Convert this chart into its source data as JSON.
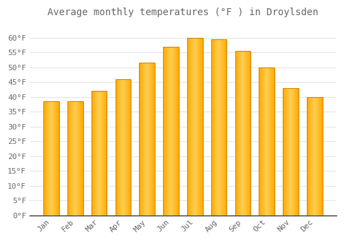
{
  "title": "Average monthly temperatures (°F ) in Droylsden",
  "months": [
    "Jan",
    "Feb",
    "Mar",
    "Apr",
    "May",
    "Jun",
    "Jul",
    "Aug",
    "Sep",
    "Oct",
    "Nov",
    "Dec"
  ],
  "values": [
    38.5,
    38.5,
    42.0,
    46.0,
    51.5,
    57.0,
    60.0,
    59.5,
    55.5,
    50.0,
    43.0,
    40.0
  ],
  "bar_color": "#FFAA00",
  "bar_color_light": "#FFD966",
  "bar_edge_color": "#CC8800",
  "background_color": "#FFFFFF",
  "plot_bg_color": "#FFFFFF",
  "grid_color": "#DDDDDD",
  "text_color": "#666666",
  "spine_color": "#333333",
  "ylim": [
    0,
    65
  ],
  "yticks": [
    0,
    5,
    10,
    15,
    20,
    25,
    30,
    35,
    40,
    45,
    50,
    55,
    60
  ],
  "title_fontsize": 10,
  "tick_fontsize": 8,
  "figsize": [
    5.0,
    3.5
  ],
  "dpi": 100
}
